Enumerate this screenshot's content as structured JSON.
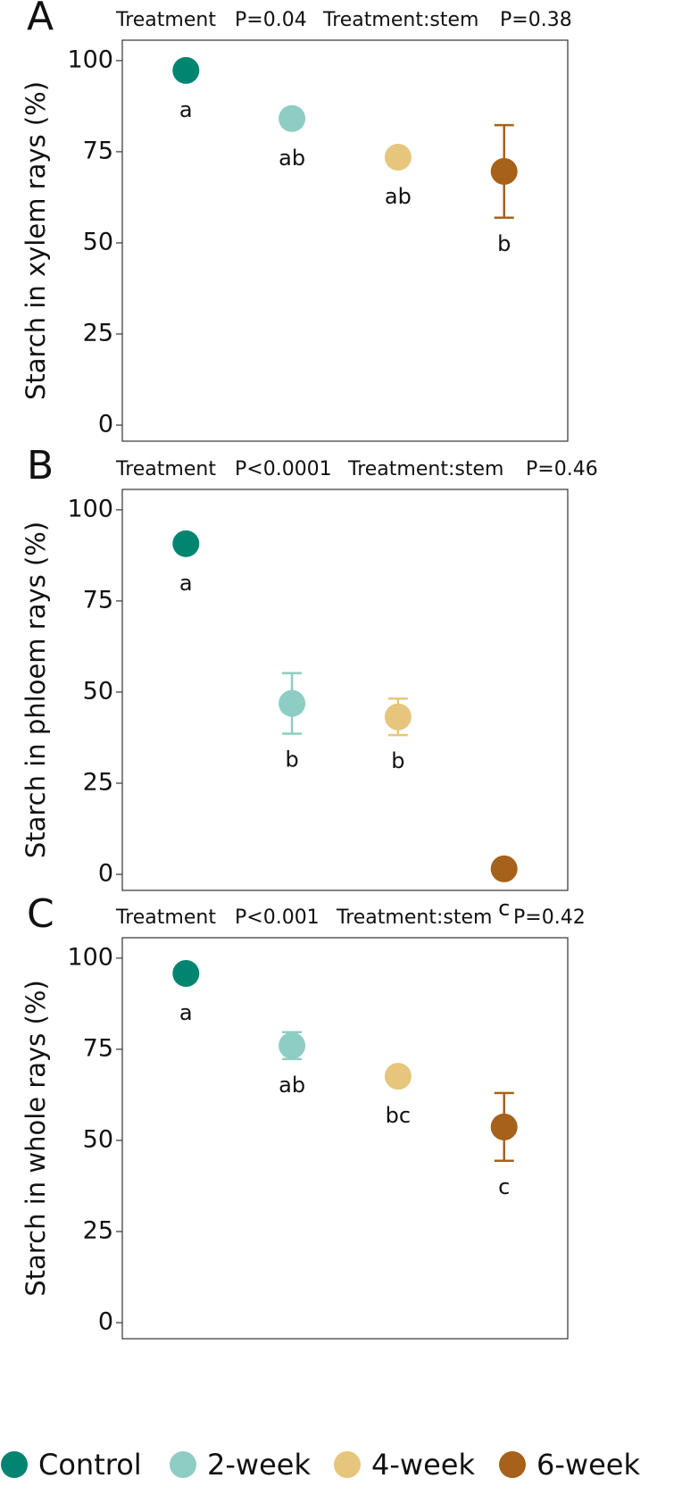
{
  "chart_data": [
    {
      "type": "scatter",
      "panel": "A",
      "annotations": [
        "Treatment",
        "P=0.04",
        "Treatment:stem",
        "P=0.38"
      ],
      "y_label": "Starch in xylem rays (%)",
      "values": [
        97.3,
        84.1,
        73.5,
        69.6
      ],
      "errors": [
        1,
        2.2,
        1,
        12.7
      ],
      "letters": [
        "a",
        "ab",
        "ab",
        "b"
      ],
      "ylim": [
        -4.4,
        105.6
      ],
      "yticks": [
        0,
        25,
        50,
        75,
        100
      ]
    },
    {
      "type": "scatter",
      "panel": "B",
      "annotations": [
        "Treatment",
        "P<0.0001",
        "Treatment:stem",
        "P=0.46"
      ],
      "y_label": "Starch in phloem rays (%)",
      "values": [
        90.7,
        46.9,
        43.2,
        1.5
      ],
      "errors": [
        1,
        8.3,
        5,
        1
      ],
      "letters": [
        "a",
        "b",
        "b",
        "c"
      ],
      "ylim": [
        -4.4,
        105.6
      ],
      "yticks": [
        0,
        25,
        50,
        75,
        100
      ]
    },
    {
      "type": "scatter",
      "panel": "C",
      "annotations": [
        "Treatment",
        "P<0.001",
        "Treatment:stem",
        "P=0.42"
      ],
      "y_label": "Starch in whole rays (%)",
      "values": [
        95.8,
        76,
        67.6,
        53.7
      ],
      "errors": [
        1,
        3.7,
        1,
        9.3
      ],
      "letters": [
        "a",
        "ab",
        "bc",
        "c"
      ],
      "ylim": [
        -4.4,
        105.6
      ],
      "yticks": [
        0,
        25,
        50,
        75,
        100
      ]
    }
  ],
  "legend": [
    {
      "name": "Control",
      "color": "#018571"
    },
    {
      "name": "2-week",
      "color": "#8ecdc3"
    },
    {
      "name": "4-week",
      "color": "#e6c67c"
    },
    {
      "name": "6-week",
      "color": "#a6611a"
    }
  ]
}
